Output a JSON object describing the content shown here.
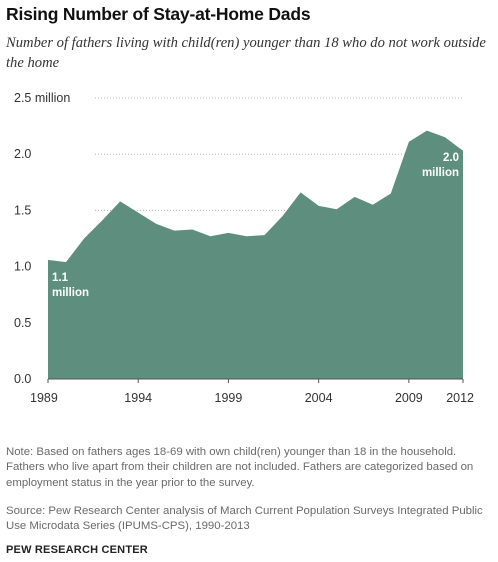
{
  "title": "Rising Number of Stay-at-Home  Dads",
  "subtitle": "Number of fathers living with child(ren) younger than 18 who do not work outside the home",
  "chart_data": {
    "type": "area",
    "x": [
      1989,
      1990,
      1991,
      1992,
      1993,
      1994,
      1995,
      1996,
      1997,
      1998,
      1999,
      2000,
      2001,
      2002,
      2003,
      2004,
      2005,
      2006,
      2007,
      2008,
      2009,
      2010,
      2011,
      2012
    ],
    "values": [
      1.06,
      1.04,
      1.25,
      1.41,
      1.58,
      1.48,
      1.38,
      1.32,
      1.33,
      1.27,
      1.3,
      1.27,
      1.28,
      1.45,
      1.66,
      1.54,
      1.51,
      1.62,
      1.55,
      1.65,
      2.11,
      2.21,
      2.15,
      2.03
    ],
    "xlim": [
      1989,
      2012
    ],
    "ylim": [
      0,
      2.5
    ],
    "y_ticks": [
      {
        "value": 0,
        "label": "0.0"
      },
      {
        "value": 0.5,
        "label": "0.5"
      },
      {
        "value": 1.0,
        "label": "1.0"
      },
      {
        "value": 1.5,
        "label": "1.5"
      },
      {
        "value": 2.0,
        "label": "2.0"
      },
      {
        "value": 2.5,
        "label": "2.5 million"
      }
    ],
    "x_ticks": [
      {
        "value": 1989,
        "label": "1989"
      },
      {
        "value": 1994,
        "label": "1994"
      },
      {
        "value": 1999,
        "label": "1999"
      },
      {
        "value": 2004,
        "label": "2004"
      },
      {
        "value": 2009,
        "label": "2009"
      },
      {
        "value": 2012,
        "label": "2012"
      }
    ],
    "grid": "horizontal dotted",
    "area_color": "#5e8f7e",
    "annotations": [
      {
        "x": 1989,
        "lines": [
          "1.1",
          "million"
        ]
      },
      {
        "x": 2012,
        "lines": [
          "2.0",
          "million"
        ]
      }
    ]
  },
  "note": "Note: Based on fathers ages 18-69 with own child(ren) younger than 18 in the household. Fathers who live apart from their children are not included. Fathers are categorized based on employment status in the year prior to the survey.",
  "source": "Source: Pew Research Center analysis of March Current Population Surveys Integrated Public Use Microdata Series (IPUMS-CPS), 1990-2013",
  "footer": "PEW RESEARCH CENTER"
}
